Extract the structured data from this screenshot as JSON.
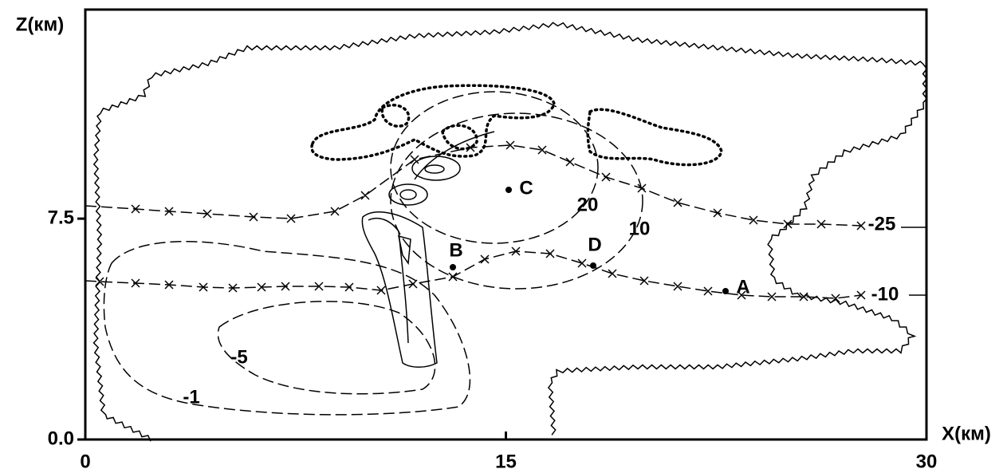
{
  "chart_data": {
    "type": "contour",
    "y_label": "Z(км)",
    "x_label": "X(км)",
    "xlim": [
      0,
      30
    ],
    "ylim": [
      0,
      14.6
    ],
    "xticks": [
      0,
      15,
      30
    ],
    "yticks": [
      {
        "value": 0,
        "label": "0.0"
      },
      7.5
    ],
    "contour_labels": [
      "20",
      "10",
      "-25",
      "-10",
      "-5",
      "-1"
    ],
    "points": [
      "A",
      "B",
      "C",
      "D"
    ]
  }
}
